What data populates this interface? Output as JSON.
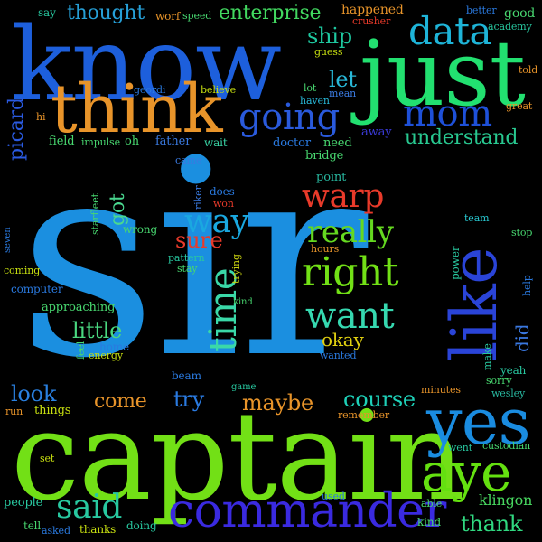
{
  "background": "#000000",
  "words": [
    {
      "text": "sir",
      "color": "#1b8fe0"
    },
    {
      "text": "captain",
      "color": "#72e016"
    },
    {
      "text": "know",
      "color": "#1d5fdc"
    },
    {
      "text": "just",
      "color": "#22e070"
    },
    {
      "text": "think",
      "color": "#e8942a"
    },
    {
      "text": "commander",
      "color": "#3a2ae0"
    },
    {
      "text": "yes",
      "color": "#1a8ce0"
    },
    {
      "text": "aye",
      "color": "#64e010"
    },
    {
      "text": "like",
      "color": "#2a44d8"
    },
    {
      "text": "data",
      "color": "#1eb4d8"
    },
    {
      "text": "mom",
      "color": "#1e50d8"
    },
    {
      "text": "going",
      "color": "#2a5adc"
    },
    {
      "text": "right",
      "color": "#72e016"
    },
    {
      "text": "time",
      "color": "#3ad8a8"
    },
    {
      "text": "want",
      "color": "#36d8b0"
    },
    {
      "text": "way",
      "color": "#1aa8e0"
    },
    {
      "text": "warp",
      "color": "#e83a2a"
    },
    {
      "text": "really",
      "color": "#64d820"
    },
    {
      "text": "said",
      "color": "#28c8a0"
    },
    {
      "text": "enterprise",
      "color": "#42d860"
    },
    {
      "text": "thought",
      "color": "#26a0d8"
    },
    {
      "text": "understand",
      "color": "#28c890"
    },
    {
      "text": "ship",
      "color": "#1ec8a0"
    },
    {
      "text": "course",
      "color": "#1ed0b8"
    },
    {
      "text": "maybe",
      "color": "#e8942a"
    },
    {
      "text": "come",
      "color": "#e8942a"
    },
    {
      "text": "look",
      "color": "#2a80e0"
    },
    {
      "text": "thank",
      "color": "#30d880"
    },
    {
      "text": "little",
      "color": "#4ad880"
    },
    {
      "text": "okay",
      "color": "#e0d010"
    },
    {
      "text": "try",
      "color": "#2a7ae0"
    },
    {
      "text": "sure",
      "color": "#e83a2a"
    },
    {
      "text": "got",
      "color": "#4ad890"
    },
    {
      "text": "let",
      "color": "#28b8d8"
    },
    {
      "text": "picard",
      "color": "#2a5ae0"
    },
    {
      "text": "did",
      "color": "#3a78e0"
    },
    {
      "text": "klingon",
      "color": "#48d860"
    },
    {
      "text": "happened",
      "color": "#e8942a"
    },
    {
      "text": "good",
      "color": "#48d870"
    },
    {
      "text": "say",
      "color": "#28c8a0"
    },
    {
      "text": "worf",
      "color": "#e8942a"
    },
    {
      "text": "speed",
      "color": "#48d870"
    },
    {
      "text": "better",
      "color": "#2a7ae0"
    },
    {
      "text": "academy",
      "color": "#28c8a0"
    },
    {
      "text": "crusher",
      "color": "#e83a2a"
    },
    {
      "text": "guess",
      "color": "#c8e010"
    },
    {
      "text": "told",
      "color": "#e8942a"
    },
    {
      "text": "great",
      "color": "#e8942a"
    },
    {
      "text": "geordi",
      "color": "#2a7ae0"
    },
    {
      "text": "believe",
      "color": "#c8e010"
    },
    {
      "text": "lot",
      "color": "#48d870"
    },
    {
      "text": "haven",
      "color": "#28b8d8"
    },
    {
      "text": "mean",
      "color": "#3a7ae0"
    },
    {
      "text": "hi",
      "color": "#e8942a"
    },
    {
      "text": "field",
      "color": "#48d870"
    },
    {
      "text": "impulse",
      "color": "#48d870"
    },
    {
      "text": "oh",
      "color": "#48d870"
    },
    {
      "text": "father",
      "color": "#3a7ae0"
    },
    {
      "text": "wait",
      "color": "#3ad8a8"
    },
    {
      "text": "doctor",
      "color": "#2a7ae0"
    },
    {
      "text": "need",
      "color": "#48d870"
    },
    {
      "text": "away",
      "color": "#3a3ad8"
    },
    {
      "text": "bridge",
      "color": "#48d870"
    },
    {
      "text": "came",
      "color": "#3a7ae0"
    },
    {
      "text": "point",
      "color": "#28b8a0"
    },
    {
      "text": "riker",
      "color": "#3a7ae0"
    },
    {
      "text": "does",
      "color": "#2a7ae0"
    },
    {
      "text": "won",
      "color": "#e83a2a"
    },
    {
      "text": "starfleet",
      "color": "#48d870"
    },
    {
      "text": "wrong",
      "color": "#48d870"
    },
    {
      "text": "team",
      "color": "#28c8d0"
    },
    {
      "text": "stop",
      "color": "#48d870"
    },
    {
      "text": "seven",
      "color": "#2a7ae0"
    },
    {
      "text": "pattern",
      "color": "#28c8a0"
    },
    {
      "text": "stay",
      "color": "#48d870"
    },
    {
      "text": "trying",
      "color": "#c8d010"
    },
    {
      "text": "hours",
      "color": "#e8942a"
    },
    {
      "text": "power",
      "color": "#28c8a0"
    },
    {
      "text": "help",
      "color": "#2a7ae0"
    },
    {
      "text": "coming",
      "color": "#c8e010"
    },
    {
      "text": "computer",
      "color": "#2a7ae0"
    },
    {
      "text": "approaching",
      "color": "#48d870"
    },
    {
      "text": "feel",
      "color": "#48d870"
    },
    {
      "text": "home",
      "color": "#2a7ae0"
    },
    {
      "text": "energy",
      "color": "#c8e010"
    },
    {
      "text": "make",
      "color": "#28c8a0"
    },
    {
      "text": "wanted",
      "color": "#2a7ae0"
    },
    {
      "text": "yeah",
      "color": "#28c8a0"
    },
    {
      "text": "sorry",
      "color": "#48d870"
    },
    {
      "text": "beam",
      "color": "#2a7ae0"
    },
    {
      "text": "game",
      "color": "#28c8a0"
    },
    {
      "text": "minutes",
      "color": "#e8942a"
    },
    {
      "text": "wesley",
      "color": "#28b8a0"
    },
    {
      "text": "run",
      "color": "#e8942a"
    },
    {
      "text": "things",
      "color": "#c8e010"
    },
    {
      "text": "remember",
      "color": "#e8942a"
    },
    {
      "text": "went",
      "color": "#28c8a0"
    },
    {
      "text": "custodian",
      "color": "#48d870"
    },
    {
      "text": "set",
      "color": "#c8e010"
    },
    {
      "text": "people",
      "color": "#28c8a0"
    },
    {
      "text": "used",
      "color": "#2a7ae0"
    },
    {
      "text": "able",
      "color": "#48d870"
    },
    {
      "text": "tell",
      "color": "#48d870"
    },
    {
      "text": "asked",
      "color": "#2a7ae0"
    },
    {
      "text": "thanks",
      "color": "#c8e010"
    },
    {
      "text": "doing",
      "color": "#28c8a0"
    },
    {
      "text": "kind",
      "color": "#48d870"
    },
    {
      "text": "laid",
      "color": "#2a7ae0"
    }
  ]
}
